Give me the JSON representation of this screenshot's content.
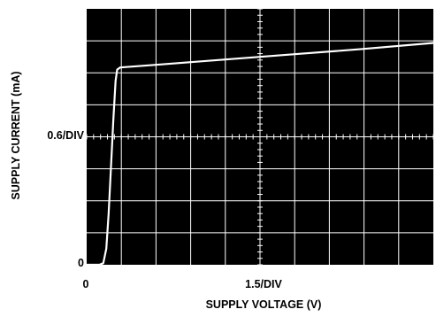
{
  "chart_data": {
    "type": "line",
    "title": "",
    "xlabel": "SUPPLY VOLTAGE (V)",
    "ylabel": "SUPPLY CURRENT (mA)",
    "x_scale_label": "1.5/DIV",
    "y_scale_label": "0.6/DIV",
    "x_origin_label": "0",
    "y_origin_label": "0",
    "xlim": [
      0,
      15
    ],
    "ylim": [
      0,
      4.8
    ],
    "x_divisions": 10,
    "y_divisions": 8,
    "grid": true,
    "background": "#000000",
    "grid_color": "#ffffff",
    "trace_color": "#ffffff",
    "series": [
      {
        "values": [
          {
            "x": 0.0,
            "y": 0.0
          },
          {
            "x": 0.55,
            "y": 0.0
          },
          {
            "x": 0.72,
            "y": 0.03
          },
          {
            "x": 0.85,
            "y": 0.3
          },
          {
            "x": 0.95,
            "y": 0.95
          },
          {
            "x": 1.05,
            "y": 1.8
          },
          {
            "x": 1.15,
            "y": 2.7
          },
          {
            "x": 1.25,
            "y": 3.45
          },
          {
            "x": 1.32,
            "y": 3.66
          },
          {
            "x": 1.45,
            "y": 3.7
          },
          {
            "x": 3.0,
            "y": 3.75
          },
          {
            "x": 6.0,
            "y": 3.85
          },
          {
            "x": 9.0,
            "y": 3.95
          },
          {
            "x": 12.0,
            "y": 4.05
          },
          {
            "x": 15.0,
            "y": 4.16
          }
        ]
      }
    ]
  }
}
